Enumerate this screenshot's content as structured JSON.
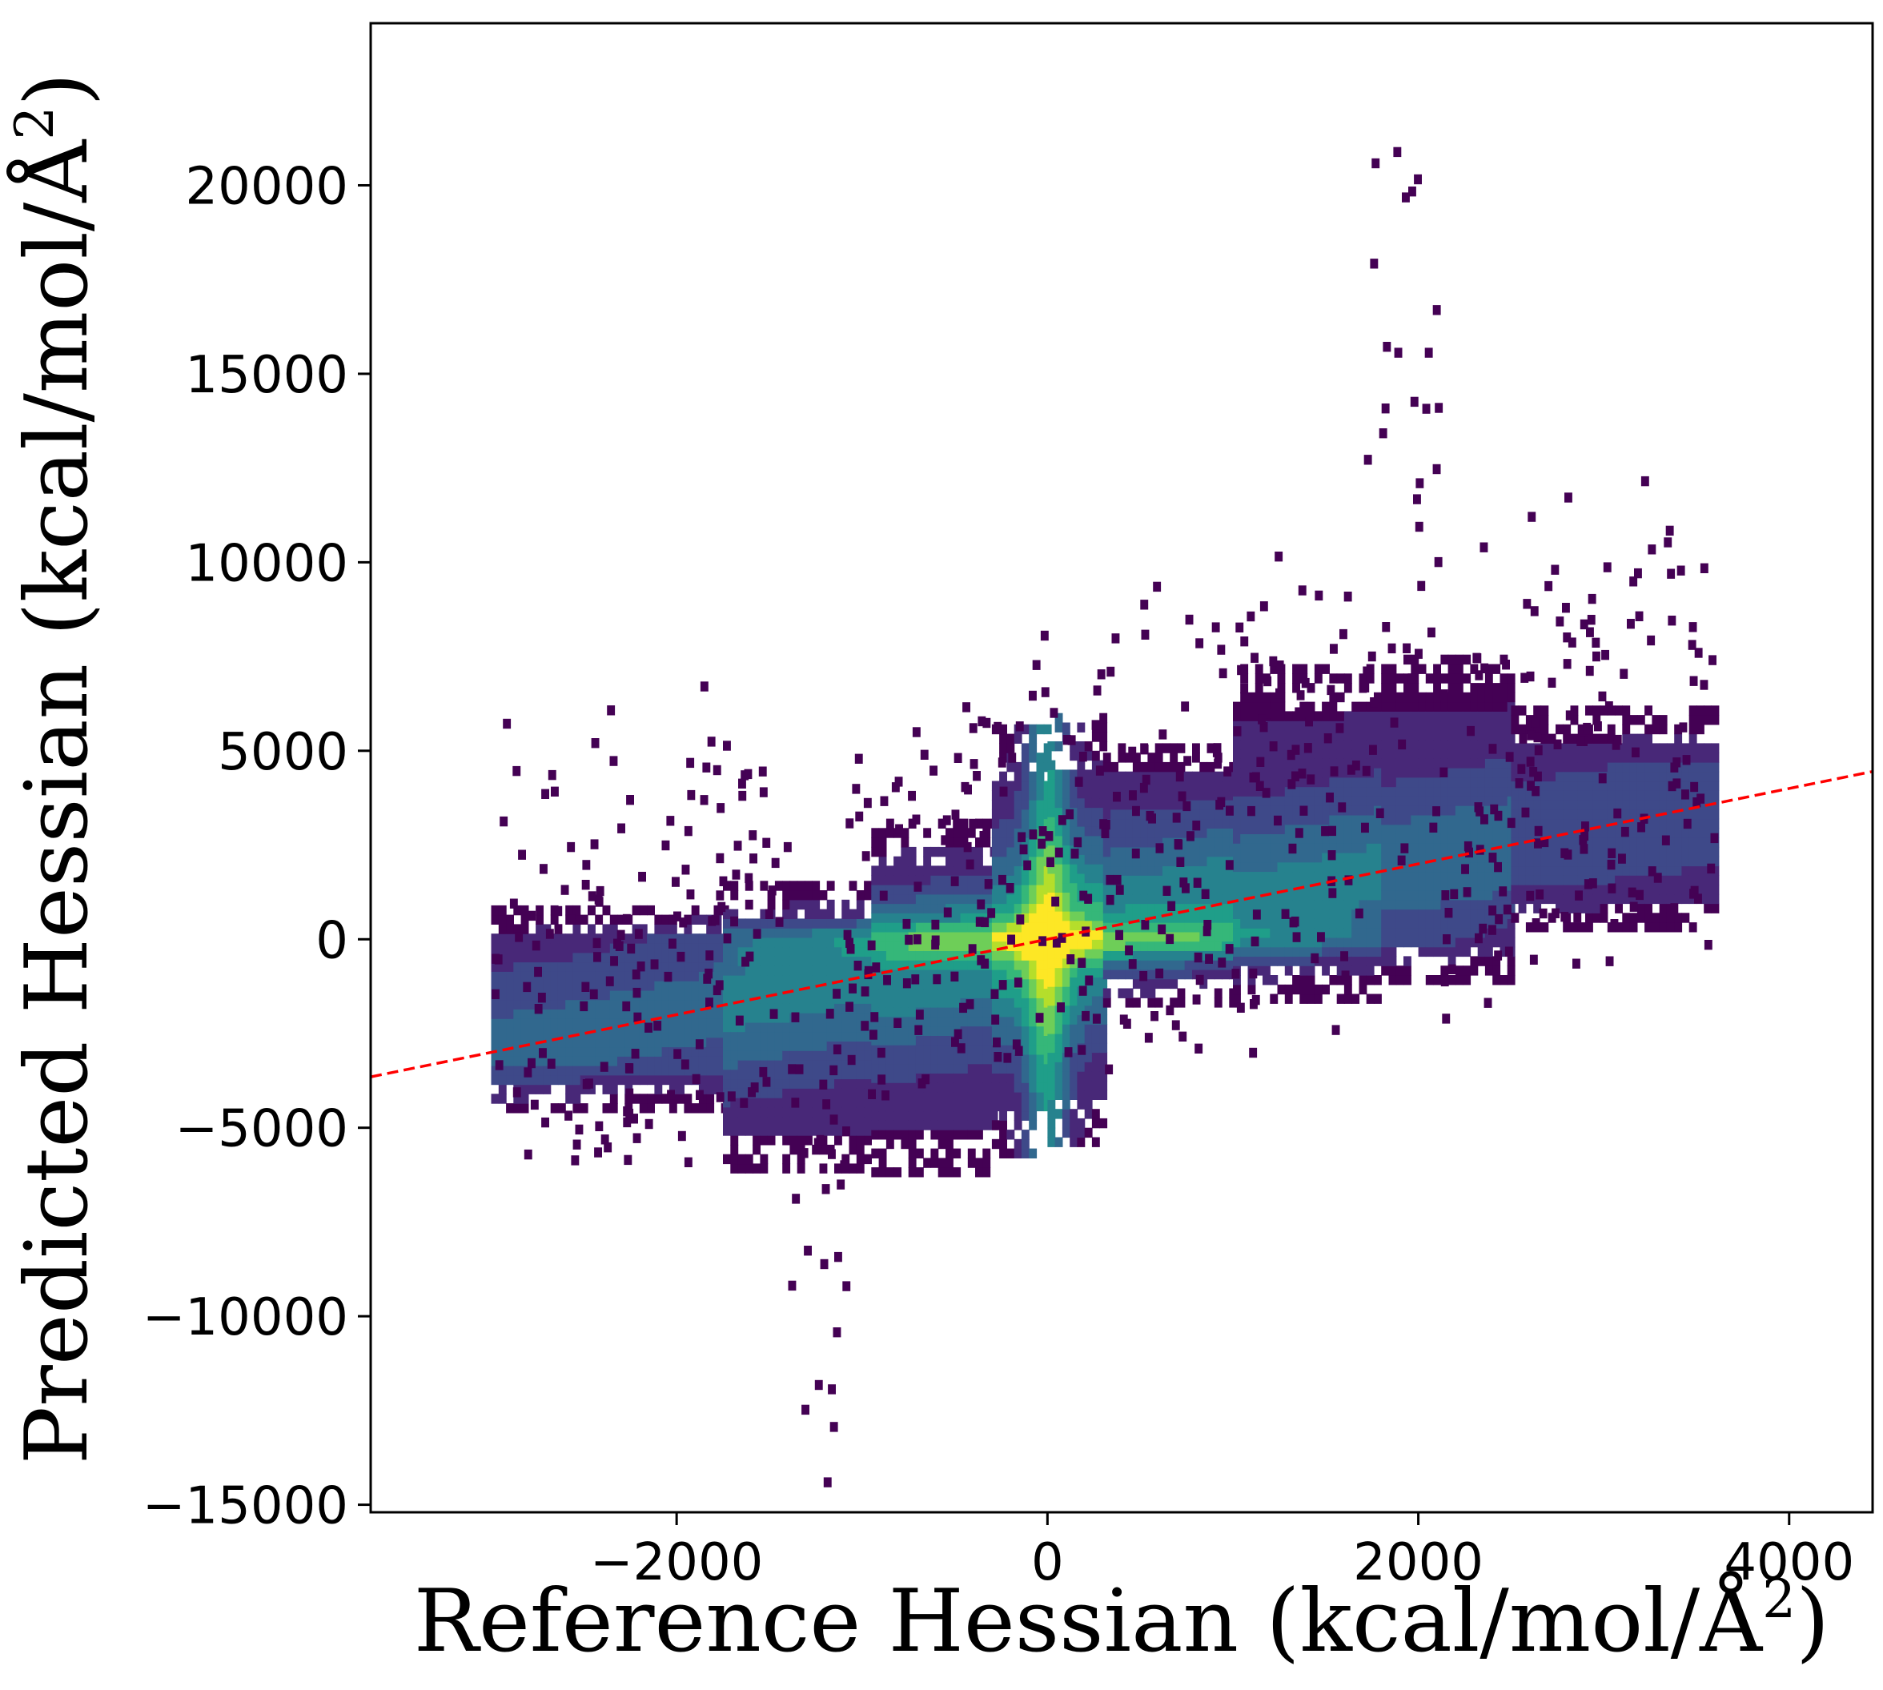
{
  "chart_data": {
    "type": "heatmap",
    "subtype": "2d-histogram-density",
    "colormap": "viridis",
    "xlabel": "Reference Hessian (kcal/mol/Å²)",
    "ylabel": "Predicted Hessian (kcal/mol/Å²)",
    "xlabel_parts": {
      "main": "Reference Hessian (kcal/mol/Å",
      "sup": "2",
      "end": ")"
    },
    "ylabel_parts": {
      "main": "Predicted Hessian (kcal/mol/Å",
      "sup": "2",
      "end": ")"
    },
    "xlim": [
      -3650,
      4450
    ],
    "ylim": [
      -15200,
      24300
    ],
    "xticks": [
      -2000,
      0,
      2000,
      4000
    ],
    "xtick_labels": [
      "−2000",
      "0",
      "2000",
      "4000"
    ],
    "yticks": [
      -15000,
      -10000,
      -5000,
      0,
      5000,
      10000,
      15000,
      20000
    ],
    "ytick_labels": [
      "−15000",
      "−10000",
      "−5000",
      "0",
      "5000",
      "10000",
      "15000",
      "20000"
    ],
    "grid": false,
    "fit_line": {
      "slope": 1.0,
      "intercept": 0,
      "style": "dashed",
      "color": "#ff0000"
    },
    "density_regions": [
      {
        "x0": -3000,
        "x1": -1750,
        "ybot": -4600,
        "ytop": 700,
        "peak": 0.45
      },
      {
        "x0": -1750,
        "x1": -950,
        "ybot": -6200,
        "ytop": 1400,
        "peak": 0.6
      },
      {
        "x0": -950,
        "x1": -300,
        "ybot": -6300,
        "ytop": 3200,
        "peak": 0.7
      },
      {
        "x0": -300,
        "x1": 0,
        "ybot": -5800,
        "ytop": 5500,
        "peak": 0.9
      },
      {
        "x0": 0,
        "x1": 300,
        "ybot": -5500,
        "ytop": 5800,
        "peak": 0.9
      },
      {
        "x0": 300,
        "x1": 1000,
        "ybot": -1800,
        "ytop": 5200,
        "peak": 0.7
      },
      {
        "x0": 1000,
        "x1": 1800,
        "ybot": -1700,
        "ytop": 7200,
        "peak": 0.6
      },
      {
        "x0": 1800,
        "x1": 2500,
        "ybot": -1200,
        "ytop": 7500,
        "peak": 0.5
      },
      {
        "x0": 2500,
        "x1": 3600,
        "ybot": 200,
        "ytop": 6000,
        "peak": 0.35
      }
    ],
    "outlier_extent": {
      "ymin": -15000,
      "ymax": 24000
    },
    "colors": {
      "fit_line": "#ff0000",
      "viridis_low": "#440154",
      "viridis_high": "#fde725",
      "axes": "#000000",
      "background": "#ffffff"
    }
  }
}
